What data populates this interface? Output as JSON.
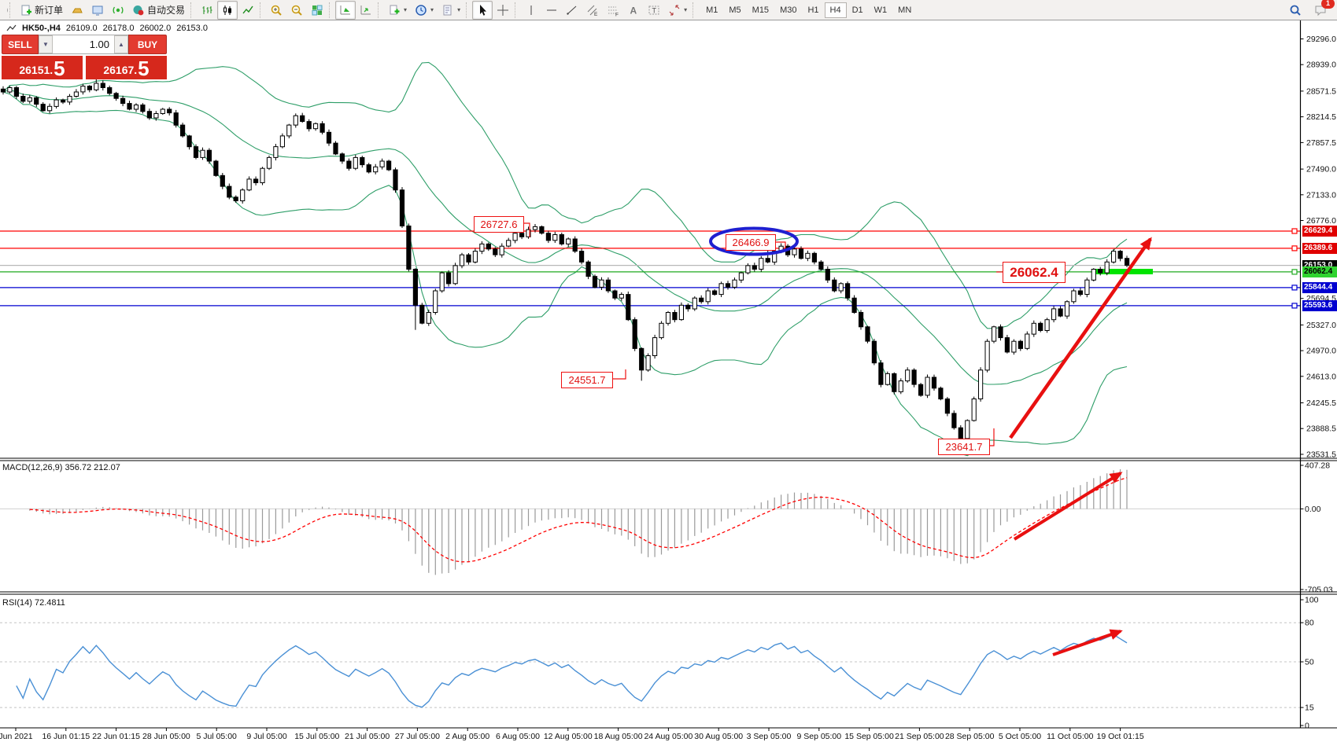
{
  "toolbar": {
    "new_order_label": "新订单",
    "auto_trading_label": "自动交易",
    "timeframes": [
      "M1",
      "M5",
      "M15",
      "M30",
      "H1",
      "H4",
      "D1",
      "W1",
      "MN"
    ],
    "active_timeframe": "H4",
    "notification_count": "1"
  },
  "chart_header": {
    "symbol_period": "HK50-,H4",
    "open": "26109.0",
    "high": "26178.0",
    "low": "26002.0",
    "close": "26153.0"
  },
  "trade_panel": {
    "sell_label": "SELL",
    "buy_label": "BUY",
    "volume": "1.00",
    "sell_price_main": "26151.",
    "sell_price_big": "5",
    "buy_price_main": "26167.",
    "buy_price_big": "5"
  },
  "annotations": {
    "res1": "26727.6",
    "res2": "26466.9",
    "support_big": "26062.4",
    "low1": "24551.7",
    "low2": "23641.7"
  },
  "indicators": {
    "macd_label": "MACD(12,26,9) 356.72 212.07",
    "rsi_label": "RSI(14) 72.4811"
  },
  "price_axis": {
    "ticks": [
      29296.0,
      28939.0,
      28571.5,
      28214.5,
      27857.5,
      27490.0,
      27133.0,
      26776.0,
      25694.5,
      25327.0,
      24970.0,
      24613.0,
      24245.5,
      23888.5,
      23531.5
    ],
    "badges": [
      {
        "text": "26629.4",
        "bg": "#e00000",
        "fg": "#ffffff",
        "price": 26629.4
      },
      {
        "text": "26389.6",
        "bg": "#e00000",
        "fg": "#ffffff",
        "price": 26389.6
      },
      {
        "text": "26153.0",
        "bg": "#000000",
        "fg": "#ffffff",
        "price": 26153.0
      },
      {
        "text": "26062.4",
        "bg": "#2fd32f",
        "fg": "#000000",
        "price": 26062.4
      },
      {
        "text": "25844.4",
        "bg": "#0000d0",
        "fg": "#ffffff",
        "price": 25844.4
      },
      {
        "text": "25593.6",
        "bg": "#0000d0",
        "fg": "#ffffff",
        "price": 25593.6
      }
    ]
  },
  "macd_axis": [
    {
      "text": "407.28",
      "value": 407.28
    },
    {
      "text": "0.00",
      "value": 0
    },
    {
      "text": "-705.03",
      "value": -705.03
    }
  ],
  "rsi_axis": [
    {
      "text": "100",
      "value": 100
    },
    {
      "text": "80",
      "value": 80
    },
    {
      "text": "50",
      "value": 50
    },
    {
      "text": "15",
      "value": 15
    },
    {
      "text": "0",
      "value": 0
    }
  ],
  "rsi_levels": [
    80,
    50,
    15
  ],
  "time_axis": [
    "Jun 2021",
    "16 Jun 01:15",
    "22 Jun 01:15",
    "28 Jun 05:00",
    "5 Jul 05:00",
    "9 Jul 05:00",
    "15 Jul 05:00",
    "21 Jul 05:00",
    "27 Jul 05:00",
    "2 Aug 05:00",
    "6 Aug 05:00",
    "12 Aug 05:00",
    "18 Aug 05:00",
    "24 Aug 05:00",
    "30 Aug 05:00",
    "3 Sep 05:00",
    "9 Sep 05:00",
    "15 Sep 05:00",
    "21 Sep 05:00",
    "28 Sep 05:00",
    "5 Oct 05:00",
    "11 Oct 05:00",
    "19 Oct 01:15"
  ],
  "chart_data": {
    "type": "candlestick",
    "symbol": "HK50-",
    "period": "H4",
    "ylim": [
      23531.5,
      29296.0
    ],
    "closes": [
      28560,
      28620,
      28500,
      28430,
      28480,
      28390,
      28300,
      28360,
      28450,
      28420,
      28500,
      28560,
      28640,
      28590,
      28680,
      28620,
      28540,
      28470,
      28400,
      28320,
      28380,
      28290,
      28200,
      28260,
      28320,
      28270,
      28100,
      27950,
      27800,
      27650,
      27750,
      27600,
      27400,
      27250,
      27100,
      27050,
      27200,
      27350,
      27300,
      27500,
      27650,
      27800,
      27950,
      28100,
      28230,
      28150,
      28050,
      28120,
      28000,
      27850,
      27700,
      27600,
      27500,
      27650,
      27550,
      27450,
      27520,
      27600,
      27480,
      27200,
      26700,
      26100,
      25600,
      25350,
      25500,
      25800,
      26050,
      25900,
      26150,
      26300,
      26200,
      26350,
      26450,
      26380,
      26300,
      26420,
      26500,
      26600,
      26550,
      26650,
      26690,
      26600,
      26500,
      26580,
      26450,
      26520,
      26350,
      26200,
      26000,
      25850,
      25950,
      25800,
      25700,
      25750,
      25400,
      25000,
      24700,
      24900,
      25150,
      25350,
      25500,
      25400,
      25600,
      25550,
      25700,
      25650,
      25800,
      25750,
      25900,
      25850,
      25950,
      26050,
      26150,
      26100,
      26250,
      26200,
      26350,
      26420,
      26300,
      26380,
      26250,
      26320,
      26200,
      26100,
      25950,
      25800,
      25900,
      25700,
      25500,
      25300,
      25100,
      24800,
      24500,
      24650,
      24400,
      24550,
      24700,
      24500,
      24350,
      24600,
      24450,
      24300,
      24100,
      23900,
      23750,
      24000,
      24300,
      24700,
      25100,
      25300,
      25150,
      24950,
      25100,
      25000,
      25200,
      25350,
      25250,
      25400,
      25550,
      25450,
      25650,
      25800,
      25750,
      25950,
      26100,
      26050,
      26200,
      26350,
      26250,
      26153
    ],
    "wick_overrides": {
      "14": {
        "high": 28905
      },
      "62": {
        "low": 25258
      },
      "80": {
        "high": 26727.6
      },
      "96": {
        "low": 24551.7
      },
      "115": {
        "high": 26466.9
      },
      "144": {
        "low": 23641.7
      }
    },
    "hlines": [
      {
        "price": 26629.4,
        "color": "#ff0000",
        "handle": true
      },
      {
        "price": 26389.6,
        "color": "#ff0000",
        "handle": true
      },
      {
        "price": 26153.0,
        "color": "#b8b8b8",
        "handle": false
      },
      {
        "price": 26062.4,
        "color": "#1faa1f",
        "handle": true
      },
      {
        "price": 25844.4,
        "color": "#0000d0",
        "handle": true
      },
      {
        "price": 25593.6,
        "color": "#0000d0",
        "handle": true
      }
    ],
    "bollinger": {
      "period": 20,
      "deviation": 2,
      "color": "#2e9e68"
    },
    "macd": {
      "fast": 12,
      "slow": 26,
      "signal": 9,
      "hist_color": "#9a9a9a",
      "signal_color": "#ff0000"
    },
    "rsi": {
      "period": 14,
      "color": "#4a90d5"
    },
    "candle_up_fill": "#ffffff",
    "candle_down_fill": "#000000",
    "annotation_color": "#ee1111",
    "arrow_color": "#e81010",
    "ellipse_color": "#1f1fd0",
    "highlight_color": "#00e400"
  }
}
